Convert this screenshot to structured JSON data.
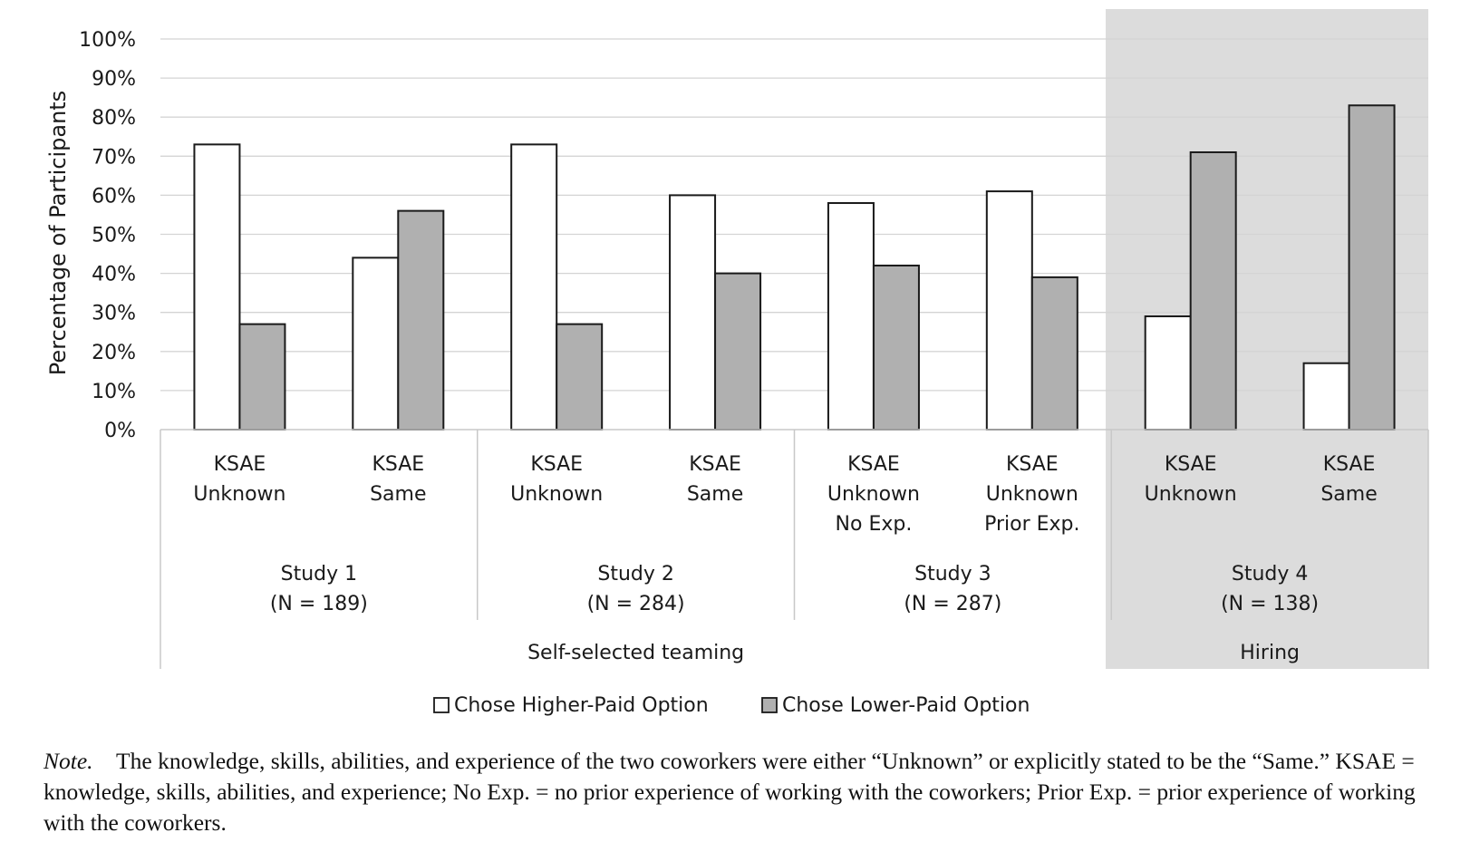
{
  "chart_data": {
    "type": "bar",
    "ylabel": "Percentage of Participants",
    "ylim": [
      0,
      100
    ],
    "y_ticks": [
      "0%",
      "10%",
      "20%",
      "30%",
      "40%",
      "50%",
      "60%",
      "70%",
      "80%",
      "90%",
      "100%"
    ],
    "grid": true,
    "categories": [
      [
        "KSAE",
        "Unknown"
      ],
      [
        "KSAE",
        "Same"
      ],
      [
        "KSAE",
        "Unknown"
      ],
      [
        "KSAE",
        "Same"
      ],
      [
        "KSAE",
        "Unknown",
        "No Exp."
      ],
      [
        "KSAE",
        "Unknown",
        "Prior Exp."
      ],
      [
        "KSAE",
        "Unknown"
      ],
      [
        "KSAE",
        "Same"
      ]
    ],
    "series": [
      {
        "name": "Chose Higher-Paid Option",
        "values": [
          73,
          44,
          73,
          60,
          58,
          61,
          29,
          17
        ],
        "color": "#ffffff"
      },
      {
        "name": "Chose Lower-Paid Option",
        "values": [
          27,
          56,
          27,
          40,
          42,
          39,
          71,
          83
        ],
        "color": "#b0b0b0"
      }
    ],
    "studies": [
      {
        "line1": "Study 1",
        "line2": "(N = 189)"
      },
      {
        "line1": "Study 2",
        "line2": "(N = 284)"
      },
      {
        "line1": "Study 3",
        "line2": "(N = 287)"
      },
      {
        "line1": "Study 4",
        "line2": "(N = 138)"
      }
    ],
    "groups": [
      "Self-selected teaming",
      "Hiring"
    ],
    "legend_position": "bottom",
    "highlight_color": "#dcdcdc"
  },
  "note": {
    "lead": "Note.",
    "text": "The knowledge, skills, abilities, and experience of the two coworkers were either “Unknown” or explicitly stated to be the “Same.” KSAE = knowledge, skills, abilities, and experience; No Exp. = no prior experience of working with the coworkers; Prior Exp. = prior experience of working with the coworkers."
  }
}
